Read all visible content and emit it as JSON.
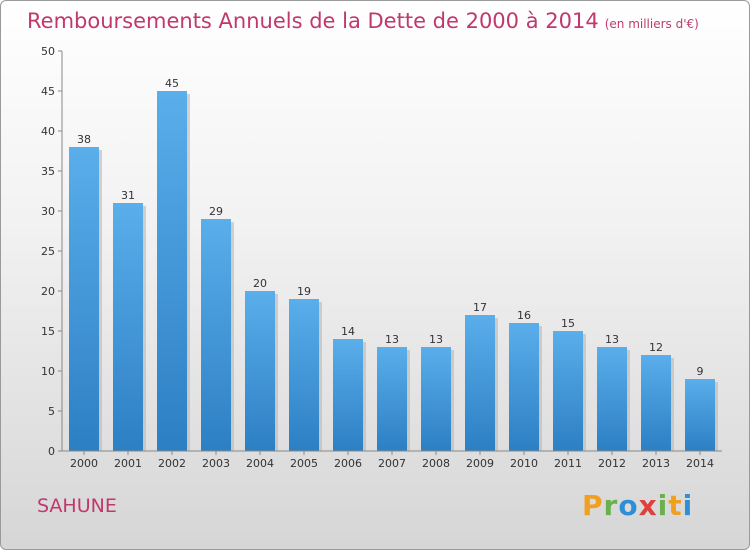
{
  "title": "Remboursements Annuels de la Dette de 2000 à 2014",
  "unit": "(en milliers d'€)",
  "commune": "SAHUNE",
  "logo": {
    "p": "P",
    "r": "r",
    "o": "o",
    "x": "x",
    "i1": "i",
    "t": "t",
    "i2": "i"
  },
  "colors": {
    "bar_top": "#5aaeea",
    "bar_bottom": "#2d7fc4",
    "title": "#c0386e"
  },
  "chart_data": {
    "type": "bar",
    "title": "Remboursements Annuels de la Dette de 2000 à 2014",
    "xlabel": "",
    "ylabel": "",
    "ylim": [
      0,
      50
    ],
    "yticks": [
      0,
      5,
      10,
      15,
      20,
      25,
      30,
      35,
      40,
      45,
      50
    ],
    "grid": false,
    "categories": [
      "2000",
      "2001",
      "2002",
      "2003",
      "2004",
      "2005",
      "2006",
      "2007",
      "2008",
      "2009",
      "2010",
      "2011",
      "2012",
      "2013",
      "2014"
    ],
    "values": [
      38,
      31,
      45,
      29,
      20,
      19,
      14,
      13,
      13,
      17,
      16,
      15,
      13,
      12,
      9
    ]
  }
}
